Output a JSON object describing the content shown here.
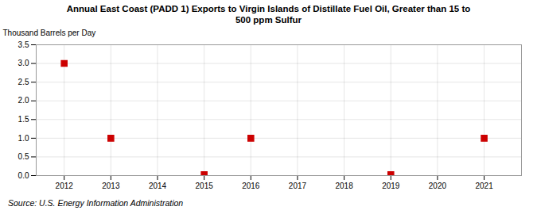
{
  "chart_data": {
    "type": "scatter",
    "title": "Annual East Coast (PADD 1) Exports to Virgin Islands of Distillate Fuel Oil, Greater than 15 to\n500 ppm Sulfur",
    "ylabel": "Thousand Barrels per Day",
    "source": "Source: U.S. Energy Information Administration",
    "x": [
      2012,
      2013,
      2015,
      2016,
      2019,
      2021
    ],
    "values": [
      3.0,
      1.0,
      0.027,
      1.0,
      0.027,
      1.0
    ],
    "xlim": [
      2011.4,
      2021.8
    ],
    "ylim": [
      0.0,
      3.5
    ],
    "xticks": [
      2012,
      2013,
      2014,
      2015,
      2016,
      2017,
      2018,
      2019,
      2020,
      2021
    ],
    "yticks": [
      {
        "value": 0.0,
        "label": "0.0"
      },
      0.5,
      {
        "value": 1.0,
        "label": "1.0"
      },
      1.5,
      {
        "value": 2.0,
        "label": "2.0"
      },
      2.5,
      {
        "value": 3.0,
        "label": "3.0"
      },
      3.5
    ],
    "color": "#cc0000",
    "marker": "square",
    "grid": true
  }
}
